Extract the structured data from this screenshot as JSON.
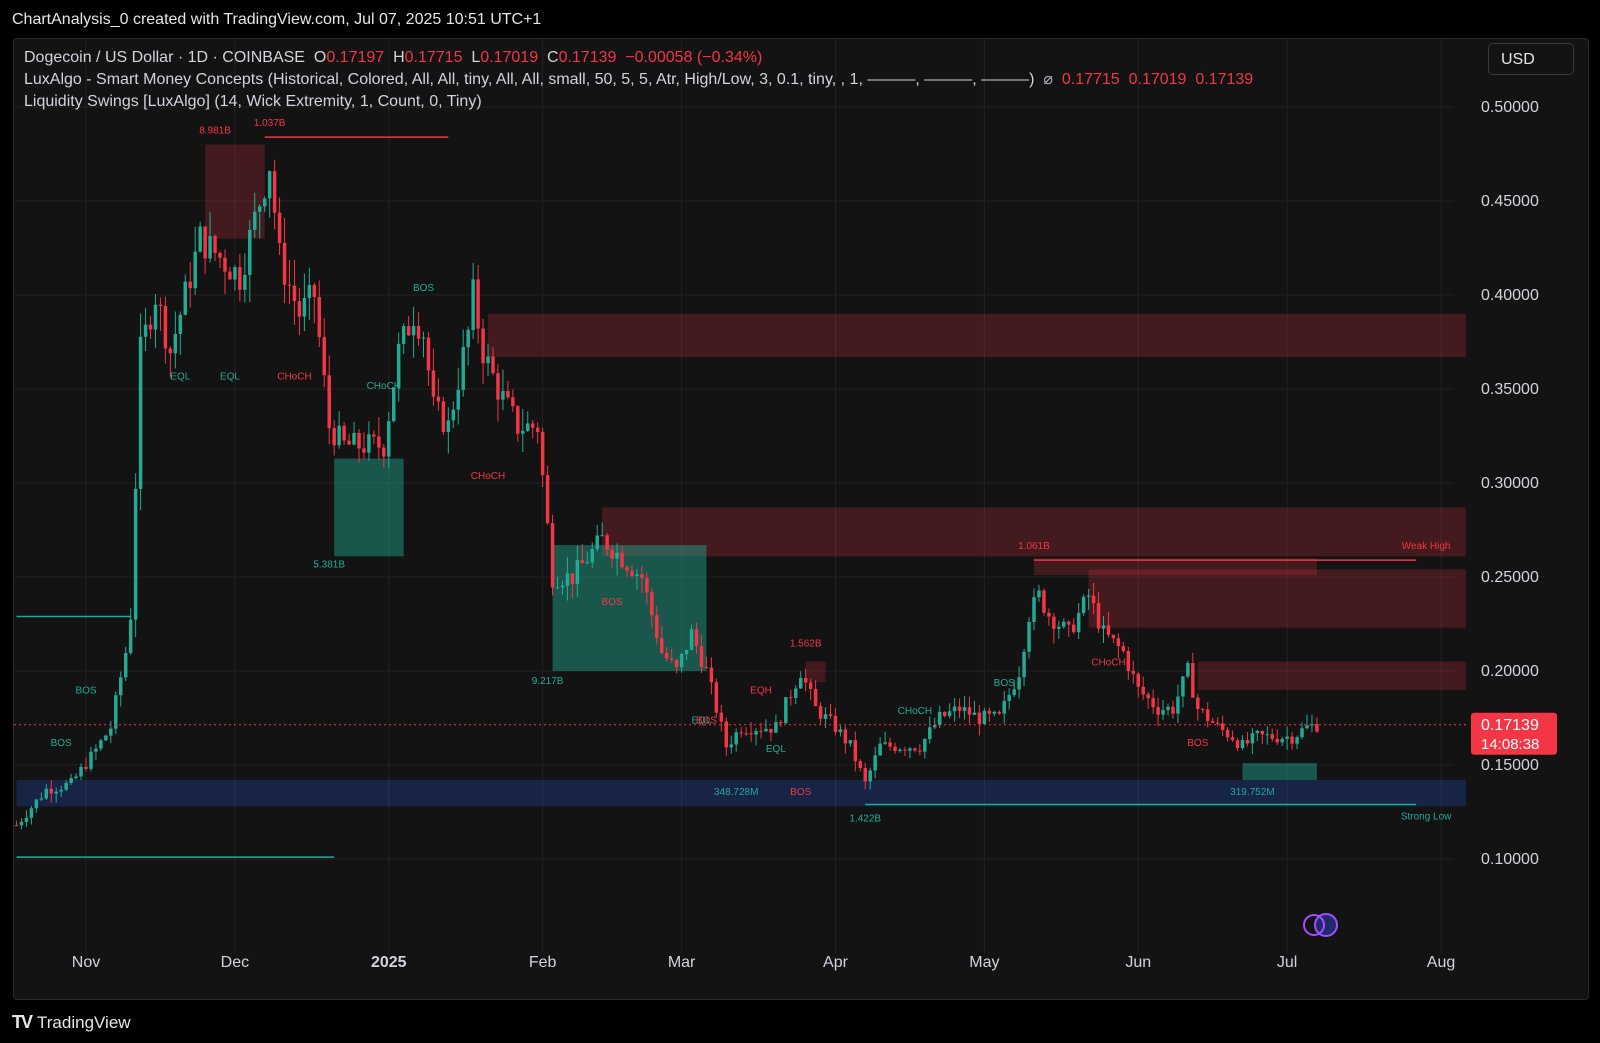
{
  "header": {
    "caption": "ChartAnalysis_0 created with TradingView.com, Jul 07, 2025 10:51 UTC+1"
  },
  "legend": {
    "symbol": "Dogecoin / US Dollar · 1D · COINBASE",
    "o_label": "O",
    "o_value": "0.17197",
    "h_label": "H",
    "h_value": "0.17715",
    "l_label": "L",
    "l_value": "0.17019",
    "c_label": "C",
    "c_value": "0.17139",
    "change": "−0.00058 (−0.34%)",
    "indicator1": "LuxAlgo - Smart Money Concepts (Historical, Colored, All, All, tiny, All, All, small, 50, 5, 5, Atr, High/Low, 3, 0.1, tiny, , 1, ———, ———, ———)",
    "indicator1_icon": "eye-off-icon",
    "indicator1_values": [
      "0.17715",
      "0.17019",
      "0.17139"
    ],
    "indicator2": "Liquidity Swings [LuxAlgo] (14, Wick Extremity, 1, Count, 0, Tiny)"
  },
  "currency_button": "USD",
  "price_tag": {
    "price": "0.17139",
    "countdown": "14:08:38"
  },
  "footer": {
    "logo_text": "TradingView",
    "logo_icon": "tradingview-logo-icon"
  },
  "colors": {
    "up": "#22ab94",
    "down": "#f23645",
    "background": "#131313",
    "supply_zone": "#5a2a2a",
    "demand_zone": "#1d3a5a"
  },
  "chart_data": {
    "type": "candlestick",
    "title": "Dogecoin / US Dollar · 1D · COINBASE",
    "ylim": [
      0.075,
      0.52
    ],
    "y_ticks": [
      "0.50000",
      "0.45000",
      "0.40000",
      "0.35000",
      "0.30000",
      "0.25000",
      "0.20000",
      "0.15000",
      "0.10000"
    ],
    "y_tick_values": [
      0.5,
      0.45,
      0.4,
      0.35,
      0.3,
      0.25,
      0.2,
      0.15,
      0.1
    ],
    "x_ticks": [
      {
        "label": "Nov",
        "date": "2024-11-01"
      },
      {
        "label": "Dec",
        "date": "2024-12-01"
      },
      {
        "label": "2025",
        "date": "2025-01-01",
        "bold": true
      },
      {
        "label": "Feb",
        "date": "2025-02-01"
      },
      {
        "label": "Mar",
        "date": "2025-03-01"
      },
      {
        "label": "Apr",
        "date": "2025-04-01"
      },
      {
        "label": "May",
        "date": "2025-05-01"
      },
      {
        "label": "Jun",
        "date": "2025-06-01"
      },
      {
        "label": "Jul",
        "date": "2025-07-01"
      },
      {
        "label": "Aug",
        "date": "2025-08-01"
      }
    ],
    "x_range": [
      "2024-10-18",
      "2025-08-08"
    ],
    "current_price": 0.17139,
    "price_path": [
      [
        "2024-10-18",
        0.118
      ],
      [
        "2024-10-24",
        0.137
      ],
      [
        "2024-10-29",
        0.14
      ],
      [
        "2024-11-03",
        0.158
      ],
      [
        "2024-11-06",
        0.17
      ],
      [
        "2024-11-09",
        0.21
      ],
      [
        "2024-11-10",
        0.23
      ],
      [
        "2024-11-12",
        0.37
      ],
      [
        "2024-11-15",
        0.4
      ],
      [
        "2024-11-18",
        0.37
      ],
      [
        "2024-11-22",
        0.41
      ],
      [
        "2024-11-24",
        0.43
      ],
      [
        "2024-11-28",
        0.42
      ],
      [
        "2024-12-02",
        0.41
      ],
      [
        "2024-12-05",
        0.44
      ],
      [
        "2024-12-08",
        0.47
      ],
      [
        "2024-12-10",
        0.42
      ],
      [
        "2024-12-14",
        0.39
      ],
      [
        "2024-12-17",
        0.4
      ],
      [
        "2024-12-20",
        0.33
      ],
      [
        "2024-12-23",
        0.32
      ],
      [
        "2024-12-27",
        0.32
      ],
      [
        "2024-12-31",
        0.32
      ],
      [
        "2025-01-03",
        0.37
      ],
      [
        "2025-01-06",
        0.39
      ],
      [
        "2025-01-08",
        0.38
      ],
      [
        "2025-01-10",
        0.34
      ],
      [
        "2025-01-13",
        0.33
      ],
      [
        "2025-01-17",
        0.38
      ],
      [
        "2025-01-18",
        0.4
      ],
      [
        "2025-01-20",
        0.37
      ],
      [
        "2025-01-23",
        0.35
      ],
      [
        "2025-01-27",
        0.33
      ],
      [
        "2025-01-31",
        0.33
      ],
      [
        "2025-02-03",
        0.25
      ],
      [
        "2025-02-07",
        0.25
      ],
      [
        "2025-02-10",
        0.26
      ],
      [
        "2025-02-13",
        0.27
      ],
      [
        "2025-02-17",
        0.26
      ],
      [
        "2025-02-21",
        0.25
      ],
      [
        "2025-02-25",
        0.21
      ],
      [
        "2025-02-28",
        0.2
      ],
      [
        "2025-03-03",
        0.22
      ],
      [
        "2025-03-06",
        0.2
      ],
      [
        "2025-03-10",
        0.16
      ],
      [
        "2025-03-13",
        0.17
      ],
      [
        "2025-03-17",
        0.17
      ],
      [
        "2025-03-20",
        0.17
      ],
      [
        "2025-03-25",
        0.2
      ],
      [
        "2025-03-28",
        0.18
      ],
      [
        "2025-04-01",
        0.17
      ],
      [
        "2025-04-04",
        0.16
      ],
      [
        "2025-04-07",
        0.14
      ],
      [
        "2025-04-10",
        0.16
      ],
      [
        "2025-04-14",
        0.16
      ],
      [
        "2025-04-18",
        0.16
      ],
      [
        "2025-04-22",
        0.175
      ],
      [
        "2025-04-26",
        0.18
      ],
      [
        "2025-04-30",
        0.175
      ],
      [
        "2025-05-04",
        0.175
      ],
      [
        "2025-05-08",
        0.2
      ],
      [
        "2025-05-10",
        0.23
      ],
      [
        "2025-05-12",
        0.24
      ],
      [
        "2025-05-14",
        0.23
      ],
      [
        "2025-05-18",
        0.22
      ],
      [
        "2025-05-22",
        0.24
      ],
      [
        "2025-05-25",
        0.22
      ],
      [
        "2025-05-29",
        0.21
      ],
      [
        "2025-06-01",
        0.19
      ],
      [
        "2025-06-05",
        0.18
      ],
      [
        "2025-06-08",
        0.18
      ],
      [
        "2025-06-11",
        0.2
      ],
      [
        "2025-06-13",
        0.18
      ],
      [
        "2025-06-17",
        0.17
      ],
      [
        "2025-06-20",
        0.165
      ],
      [
        "2025-06-22",
        0.16
      ],
      [
        "2025-06-25",
        0.165
      ],
      [
        "2025-06-29",
        0.165
      ],
      [
        "2025-07-02",
        0.165
      ],
      [
        "2025-07-05",
        0.17
      ],
      [
        "2025-07-07",
        0.17139
      ]
    ],
    "zones": [
      {
        "kind": "supply",
        "from": "2024-11-25",
        "to": "2024-12-07",
        "top": 0.48,
        "bottom": 0.43
      },
      {
        "kind": "supply-line",
        "from": "2024-12-07",
        "to": "2025-01-13",
        "price": 0.484
      },
      {
        "kind": "supply",
        "from": "2025-01-21",
        "to": "2025-08-06",
        "top": 0.39,
        "bottom": 0.367
      },
      {
        "kind": "supply",
        "from": "2025-02-13",
        "to": "2025-08-06",
        "top": 0.287,
        "bottom": 0.261
      },
      {
        "kind": "demand",
        "from": "2024-12-21",
        "to": "2025-01-04",
        "top": 0.313,
        "bottom": 0.261
      },
      {
        "kind": "demand",
        "from": "2025-02-03",
        "to": "2025-03-06",
        "top": 0.267,
        "bottom": 0.2
      },
      {
        "kind": "supply",
        "from": "2025-03-26",
        "to": "2025-03-30",
        "top": 0.205,
        "bottom": 0.194
      },
      {
        "kind": "supply",
        "from": "2025-05-11",
        "to": "2025-07-07",
        "top": 0.26,
        "bottom": 0.251
      },
      {
        "kind": "supply",
        "from": "2025-05-22",
        "to": "2025-08-06",
        "top": 0.254,
        "bottom": 0.223
      },
      {
        "kind": "supply",
        "from": "2025-06-13",
        "to": "2025-08-06",
        "top": 0.205,
        "bottom": 0.19
      },
      {
        "kind": "liquidity",
        "from": "2024-10-18",
        "to": "2025-08-06",
        "top": 0.142,
        "bottom": 0.128
      },
      {
        "kind": "demand",
        "from": "2025-06-22",
        "to": "2025-07-07",
        "top": 0.151,
        "bottom": 0.142
      },
      {
        "kind": "demand-line",
        "from": "2025-04-07",
        "to": "2025-07-27",
        "price": 0.129
      },
      {
        "kind": "demand-line",
        "from": "2024-10-18",
        "to": "2024-11-10",
        "price": 0.229
      },
      {
        "kind": "demand-line",
        "from": "2024-10-18",
        "to": "2024-12-21",
        "price": 0.101
      },
      {
        "kind": "supply-line",
        "from": "2025-05-11",
        "to": "2025-07-27",
        "price": 0.259
      }
    ],
    "annotations": [
      {
        "text": "8.981B",
        "date": "2024-11-27",
        "price": 0.486,
        "color": "down"
      },
      {
        "text": "1.037B",
        "date": "2024-12-08",
        "price": 0.49,
        "color": "down"
      },
      {
        "text": "EQL",
        "date": "2024-11-20",
        "price": 0.355,
        "color": "up"
      },
      {
        "text": "EQL",
        "date": "2024-11-30",
        "price": 0.355,
        "color": "up"
      },
      {
        "text": "CHoCH",
        "date": "2024-12-13",
        "price": 0.355,
        "color": "down"
      },
      {
        "text": "BOS",
        "date": "2025-01-08",
        "price": 0.402,
        "color": "up"
      },
      {
        "text": "CHoCH",
        "date": "2024-12-31",
        "price": 0.35,
        "color": "up"
      },
      {
        "text": "CHoCH",
        "date": "2025-01-21",
        "price": 0.302,
        "color": "down"
      },
      {
        "text": "5.381B",
        "date": "2024-12-20",
        "price": 0.255,
        "color": "up"
      },
      {
        "text": "BOS",
        "date": "2025-02-15",
        "price": 0.235,
        "color": "down"
      },
      {
        "text": "9.217B",
        "date": "2025-02-02",
        "price": 0.193,
        "color": "up"
      },
      {
        "text": "BOS",
        "date": "2024-11-01",
        "price": 0.188,
        "color": "up"
      },
      {
        "text": "BOS",
        "date": "2024-10-27",
        "price": 0.16,
        "color": "up"
      },
      {
        "text": "1.562B",
        "date": "2025-03-26",
        "price": 0.213,
        "color": "down"
      },
      {
        "text": "EQH",
        "date": "2025-03-17",
        "price": 0.188,
        "color": "down"
      },
      {
        "text": "EQL",
        "date": "2025-03-05",
        "price": 0.172,
        "color": "up"
      },
      {
        "text": "BOS",
        "date": "2025-03-06",
        "price": 0.172,
        "color": "down"
      },
      {
        "text": "EQL",
        "date": "2025-03-20",
        "price": 0.157,
        "color": "up"
      },
      {
        "text": "348.728M",
        "date": "2025-03-12",
        "price": 0.134,
        "color": "up"
      },
      {
        "text": "BOS",
        "date": "2025-03-25",
        "price": 0.134,
        "color": "down"
      },
      {
        "text": "1.422B",
        "date": "2025-04-07",
        "price": 0.12,
        "color": "up"
      },
      {
        "text": "CHoCH",
        "date": "2025-04-17",
        "price": 0.177,
        "color": "up"
      },
      {
        "text": "BOS",
        "date": "2025-05-05",
        "price": 0.192,
        "color": "up"
      },
      {
        "text": "1.061B",
        "date": "2025-05-11",
        "price": 0.265,
        "color": "down"
      },
      {
        "text": "Weak High",
        "date": "2025-07-29",
        "price": 0.265,
        "color": "down"
      },
      {
        "text": "CHoCH",
        "date": "2025-05-26",
        "price": 0.203,
        "color": "down"
      },
      {
        "text": "BOS",
        "date": "2025-06-13",
        "price": 0.16,
        "color": "down"
      },
      {
        "text": "319.752M",
        "date": "2025-06-24",
        "price": 0.134,
        "color": "up"
      },
      {
        "text": "Strong Low",
        "date": "2025-07-29",
        "price": 0.121,
        "color": "up"
      }
    ]
  }
}
